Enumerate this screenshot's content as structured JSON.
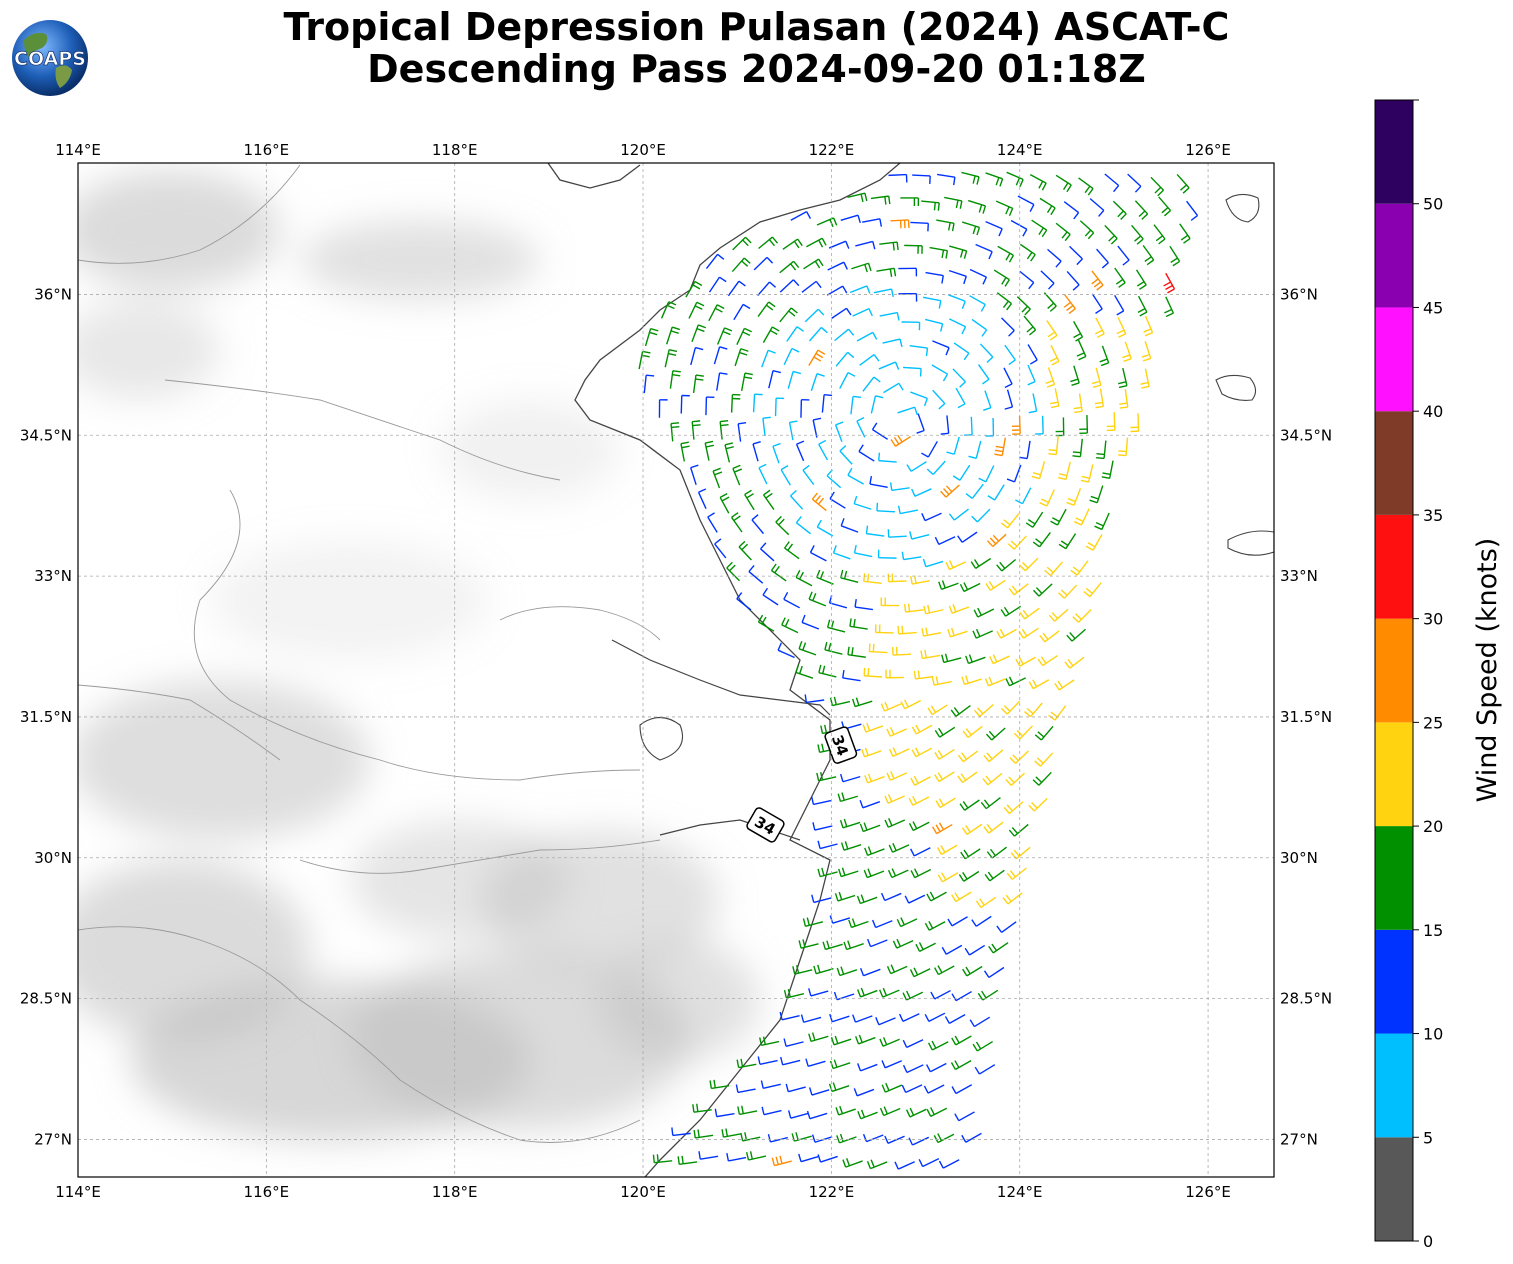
{
  "title": {
    "line1": "Tropical Depression Pulasan (2024) ASCAT-C",
    "line2": "Descending Pass 2024-09-20 01:18Z"
  },
  "logo": {
    "text": "COAPS",
    "icon": "globe-logo"
  },
  "map": {
    "lon_range": [
      114.0,
      126.7
    ],
    "lat_range": [
      26.6,
      37.4
    ],
    "lon_ticks": [
      "114°E",
      "116°E",
      "118°E",
      "120°E",
      "122°E",
      "124°E",
      "126°E"
    ],
    "lat_ticks": [
      "27°N",
      "28.5°N",
      "30°N",
      "31.5°N",
      "33°N",
      "34.5°N",
      "36°N"
    ],
    "grid": true,
    "land_shading": "grayscale terrain",
    "markers": [
      {
        "label": "34",
        "lon": 122.1,
        "lat": 31.2
      },
      {
        "label": "34",
        "lon": 121.3,
        "lat": 30.35
      }
    ]
  },
  "colorbar": {
    "label": "Wind Speed (knots)",
    "ticks": [
      "0",
      "5",
      "10",
      "15",
      "20",
      "25",
      "30",
      "35",
      "40",
      "45",
      "50"
    ],
    "bins": [
      {
        "min": 0,
        "max": 5,
        "color": "#585858"
      },
      {
        "min": 5,
        "max": 10,
        "color": "#00bfff"
      },
      {
        "min": 10,
        "max": 15,
        "color": "#0033ff"
      },
      {
        "min": 15,
        "max": 20,
        "color": "#009000"
      },
      {
        "min": 20,
        "max": 25,
        "color": "#ffd310"
      },
      {
        "min": 25,
        "max": 30,
        "color": "#ff8c00"
      },
      {
        "min": 30,
        "max": 35,
        "color": "#ff1010"
      },
      {
        "min": 35,
        "max": 40,
        "color": "#7f3a28"
      },
      {
        "min": 40,
        "max": 45,
        "color": "#ff10ff"
      },
      {
        "min": 45,
        "max": 50,
        "color": "#8a00b0"
      },
      {
        "min": 50,
        "max": 55,
        "color": "#2e0060"
      }
    ]
  }
}
